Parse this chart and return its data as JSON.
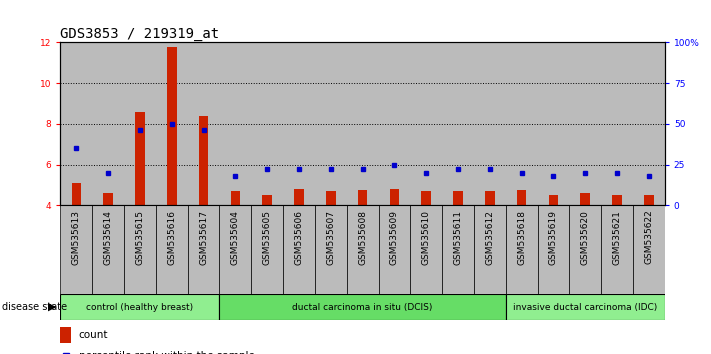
{
  "title": "GDS3853 / 219319_at",
  "samples": [
    "GSM535613",
    "GSM535614",
    "GSM535615",
    "GSM535616",
    "GSM535617",
    "GSM535604",
    "GSM535605",
    "GSM535606",
    "GSM535607",
    "GSM535608",
    "GSM535609",
    "GSM535610",
    "GSM535611",
    "GSM535612",
    "GSM535618",
    "GSM535619",
    "GSM535620",
    "GSM535621",
    "GSM535622"
  ],
  "counts": [
    5.1,
    4.6,
    8.6,
    11.8,
    8.4,
    4.7,
    4.5,
    4.8,
    4.7,
    4.75,
    4.8,
    4.7,
    4.7,
    4.7,
    4.75,
    4.5,
    4.6,
    4.5,
    4.5
  ],
  "percentile": [
    35,
    20,
    46,
    50,
    46,
    18,
    22,
    22,
    22,
    22,
    25,
    20,
    22,
    22,
    20,
    18,
    20,
    20,
    18
  ],
  "groups": [
    {
      "label": "control (healthy breast)",
      "start": 0,
      "end": 5,
      "color": "#90EE90"
    },
    {
      "label": "ductal carcinoma in situ (DCIS)",
      "start": 5,
      "end": 14,
      "color": "#66DD66"
    },
    {
      "label": "invasive ductal carcinoma (IDC)",
      "start": 14,
      "end": 19,
      "color": "#90EE90"
    }
  ],
  "ylim_left": [
    4,
    12
  ],
  "ylim_right": [
    0,
    100
  ],
  "yticks_left": [
    4,
    6,
    8,
    10,
    12
  ],
  "yticks_right": [
    0,
    25,
    50,
    75,
    100
  ],
  "ytick_labels_right": [
    "0",
    "25",
    "50",
    "75",
    "100%"
  ],
  "bar_color": "#CC2200",
  "dot_color": "#0000CC",
  "col_bg_color": "#BBBBBB",
  "plot_bg": "#FFFFFF",
  "title_fontsize": 10,
  "tick_fontsize": 6.5,
  "label_fontsize": 8
}
